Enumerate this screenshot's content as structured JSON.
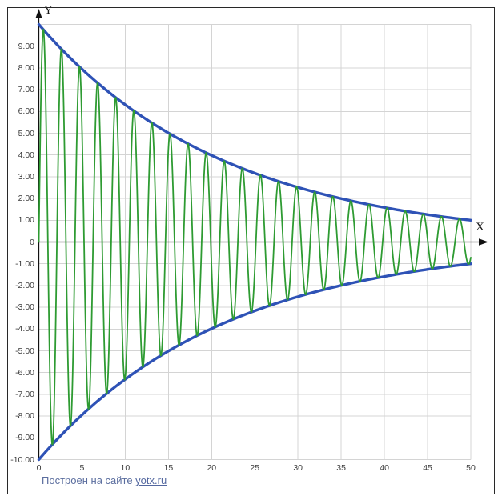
{
  "page": {
    "background": "#ffffff",
    "frame_color": "#282828"
  },
  "axes": {
    "x_label": "X",
    "y_label": "Y",
    "x_ticks": [
      {
        "value": 0,
        "label": "0"
      },
      {
        "value": 5,
        "label": "5"
      },
      {
        "value": 10,
        "label": "10"
      },
      {
        "value": 15,
        "label": "15"
      },
      {
        "value": 20,
        "label": "20"
      },
      {
        "value": 25,
        "label": "25"
      },
      {
        "value": 30,
        "label": "30"
      },
      {
        "value": 35,
        "label": "35"
      },
      {
        "value": 40,
        "label": "40"
      },
      {
        "value": 45,
        "label": "45"
      },
      {
        "value": 50,
        "label": "50"
      }
    ],
    "y_ticks": [
      {
        "value": 9,
        "label": "9.00"
      },
      {
        "value": 8,
        "label": "8.00"
      },
      {
        "value": 7,
        "label": "7.00"
      },
      {
        "value": 6,
        "label": "6.00"
      },
      {
        "value": 5,
        "label": "5.00"
      },
      {
        "value": 4,
        "label": "4.00"
      },
      {
        "value": 3,
        "label": "3.00"
      },
      {
        "value": 2,
        "label": "2.00"
      },
      {
        "value": 1,
        "label": "1.00"
      },
      {
        "value": 0,
        "label": "0"
      },
      {
        "value": -1,
        "label": "-1.00"
      },
      {
        "value": -2,
        "label": "-2.00"
      },
      {
        "value": -3,
        "label": "-3.00"
      },
      {
        "value": -4,
        "label": "-4.00"
      },
      {
        "value": -5,
        "label": "-5.00"
      },
      {
        "value": -6,
        "label": "-6.00"
      },
      {
        "value": -7,
        "label": "-7.00"
      },
      {
        "value": -8,
        "label": "-8.00"
      },
      {
        "value": -9,
        "label": "-9.00"
      },
      {
        "value": -10,
        "label": "-10.00"
      }
    ]
  },
  "footer": {
    "text": "Построен на сайте ",
    "link_text": "yotx.ru"
  },
  "chart_data": {
    "type": "line",
    "title": "",
    "xlabel": "X",
    "ylabel": "Y",
    "xlim": [
      0,
      50
    ],
    "ylim": [
      -10,
      10
    ],
    "grid": {
      "x_step": 5,
      "y_step": 1,
      "color": "#d4d4d4",
      "on": true
    },
    "axis_color": "#111111",
    "legend": "none",
    "series": [
      {
        "name": "upper-envelope",
        "expr": "10*exp(-0.0460517*x)",
        "color": "#2e52b6",
        "width": 3.4,
        "step": 0.25
      },
      {
        "name": "lower-envelope",
        "expr": "-10*exp(-0.0460517*x)",
        "color": "#2e52b6",
        "width": 3.4,
        "step": 0.25
      },
      {
        "name": "damped-sine",
        "expr": "10*exp(-0.0460517*x)*sin(3*x)",
        "color": "#2e9b32",
        "width": 1.8,
        "step": 0.02
      }
    ],
    "description": "Damped oscillation y = 10·e^(−x·ln(10)/50)·sin(3x) bounded by envelopes y = ±10·e^(−x·ln(10)/50); envelope decays from ±10 at x=0 to ±1 at x=50"
  }
}
